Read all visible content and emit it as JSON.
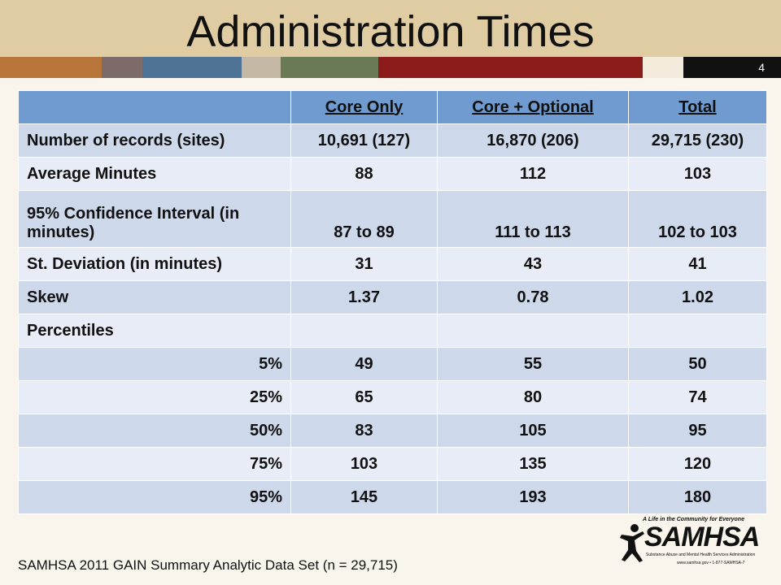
{
  "slide": {
    "title": "Administration Times",
    "number": "4"
  },
  "table": {
    "headers": [
      "",
      "Core Only",
      "Core + Optional",
      "Total"
    ],
    "rows": [
      {
        "label": "Number of records (sites)",
        "values": [
          "10,691 (127)",
          "16,870 (206)",
          "29,715 (230)"
        ]
      },
      {
        "label": "Average Minutes",
        "values": [
          "88",
          "112",
          "103"
        ]
      },
      {
        "label": "95% Confidence Interval (in minutes)",
        "values": [
          "87 to 89",
          "111 to 113",
          "102 to 103"
        ]
      },
      {
        "label": "St. Deviation (in minutes)",
        "values": [
          "31",
          "43",
          "41"
        ]
      },
      {
        "label": "Skew",
        "values": [
          "1.37",
          "0.78",
          "1.02"
        ]
      },
      {
        "label": "Percentiles",
        "values": [
          "",
          "",
          ""
        ]
      },
      {
        "label": "5%",
        "values": [
          "49",
          "55",
          "50"
        ]
      },
      {
        "label": "25%",
        "values": [
          "65",
          "80",
          "74"
        ]
      },
      {
        "label": "50%",
        "values": [
          "83",
          "105",
          "95"
        ]
      },
      {
        "label": "75%",
        "values": [
          "103",
          "135",
          "120"
        ]
      },
      {
        "label": "95%",
        "values": [
          "145",
          "193",
          "180"
        ]
      }
    ]
  },
  "footer": {
    "source": "SAMHSA 2011 GAIN Summary Analytic Data Set (n = 29,715)"
  },
  "logo": {
    "tagline": "A Life in the Community for Everyone",
    "wordmark": "SAMHSA",
    "subtitle": "Substance Abuse and Mental Health Services Administration",
    "url": "www.samhsa.gov • 1-877-SAMHSA-7"
  }
}
